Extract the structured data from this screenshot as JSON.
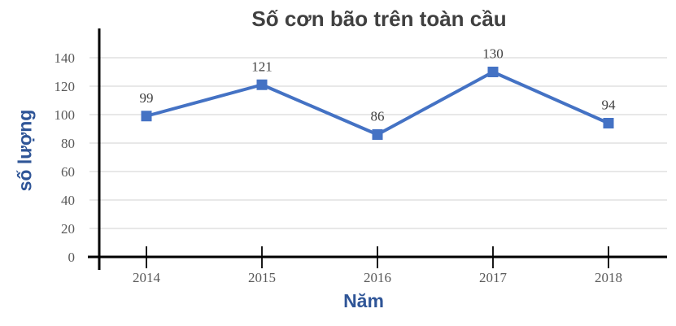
{
  "chart_data": {
    "type": "line",
    "title": "Số cơn bão trên toàn cầu",
    "xlabel": "Năm",
    "ylabel": "số lượng",
    "categories": [
      "2014",
      "2015",
      "2016",
      "2017",
      "2018"
    ],
    "values": [
      99,
      121,
      86,
      130,
      94
    ],
    "data_labels_shown": true,
    "ylim": [
      0,
      160
    ],
    "yticks": [
      0,
      20,
      40,
      60,
      80,
      100,
      120,
      140
    ],
    "grid": "horizontal",
    "legend": "none",
    "colors": {
      "line": "#4472C4",
      "marker": "#4472C4",
      "title": "#404040",
      "axis_titles": "#2F5597",
      "tick_labels": "#595959",
      "data_labels": "#404040",
      "gridline": "#D9D9D9",
      "axis_line": "#000000",
      "background": "#FFFFFF"
    }
  }
}
